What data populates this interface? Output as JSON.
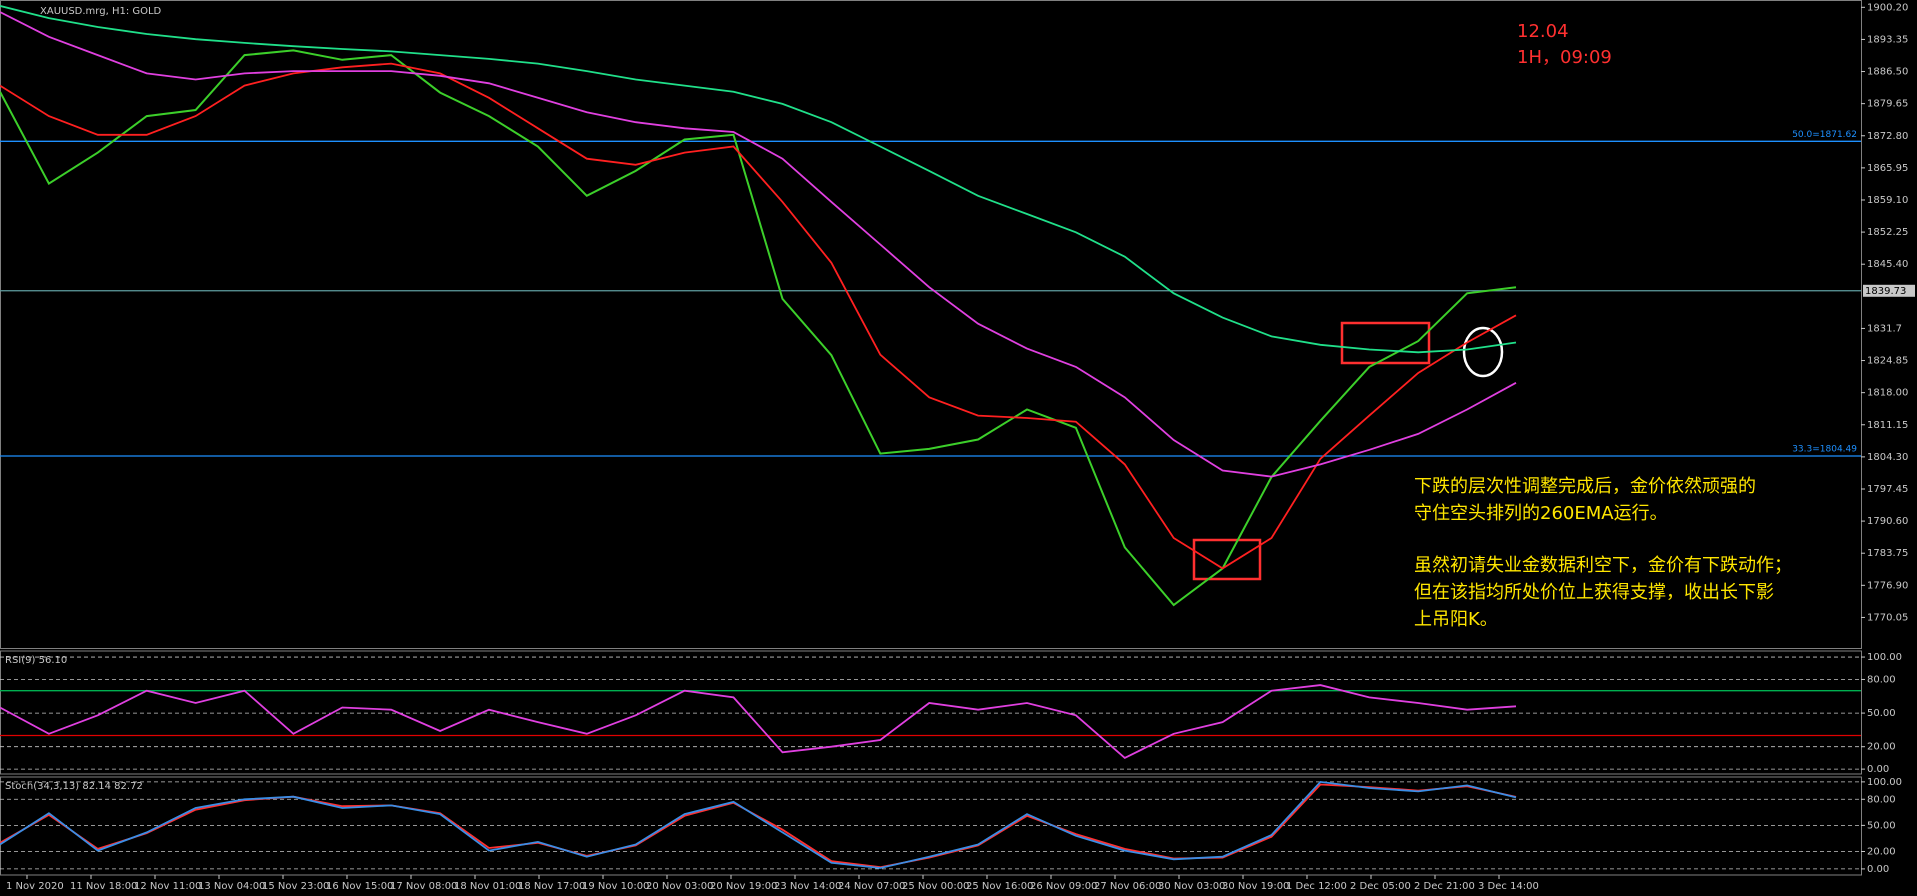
{
  "chart_data": [
    {
      "type": "line",
      "title": "XAUUSD.mrg, H1:  GOLD",
      "annotations": [
        "12.04",
        "1H，09:09"
      ],
      "notes": [
        [
          "下跌的层次性调整完成后，金价依然顽强的",
          "守住空头排列的260EMA运行。"
        ],
        [
          "虽然初请失业金数据利空下，金价有下跌动作；",
          "但在该指均所处价位上获得支撑，收出长下影",
          "上吊阳K。"
        ]
      ],
      "ylim": [
        1763.53,
        1901.76
      ],
      "yticks": [
        {
          "value": 1900.2,
          "label": "1900.20"
        },
        1893.35,
        {
          "value": 1886.5,
          "label": "1886.50"
        },
        1879.65,
        {
          "value": 1872.8,
          "label": "1872.80"
        },
        1865.95,
        {
          "value": 1859.1,
          "label": "1859.10"
        },
        1852.25,
        {
          "value": 1845.4,
          "label": "1845.40"
        },
        1831.7,
        1824.85,
        {
          "value": 1818,
          "label": "1818.00"
        },
        1811.15,
        {
          "value": 1804.3,
          "label": "1804.30"
        },
        1797.45,
        {
          "value": 1790.6,
          "label": "1790.60"
        },
        1783.75,
        {
          "value": 1776.9,
          "label": "1776.90"
        },
        1770.05
      ],
      "grid": false,
      "hlines": [
        {
          "value": 1871.62,
          "label": "50.0=1871.62",
          "color": "#1e90ff"
        },
        {
          "value": 1804.49,
          "label": "33.3=1804.49",
          "color": "#1e90ff"
        },
        {
          "value": 1839.73,
          "label": "1839.73",
          "color": "#5f9ea0"
        }
      ],
      "series": [
        {
          "color": "#3ccf2a",
          "values": [
            1882.2,
            1862.6,
            1869.2,
            1877,
            1878.3,
            1890,
            1891,
            1889,
            1890,
            1882,
            1877,
            1870.5,
            1860,
            1865.3,
            1872,
            1873,
            1838,
            1826,
            1805,
            1806,
            1808,
            1814.4,
            1810.5,
            1785,
            1772.7,
            1780.5,
            1800,
            1812,
            1823.5,
            1829,
            1839.2,
            1840.5
          ]
        },
        {
          "color": "#ff2020",
          "values": [
            1883.5,
            1877,
            1873,
            1873,
            1877,
            1883.5,
            1886.1,
            1887.4,
            1888.2,
            1886.1,
            1880.9,
            1874.4,
            1867.9,
            1866.6,
            1869.2,
            1870.5,
            1858.7,
            1845.7,
            1826.1,
            1817,
            1813.1,
            1812.6,
            1811.8,
            1802.7,
            1787,
            1780.5,
            1787,
            1803.9,
            1813.1,
            1822.2,
            1828.7,
            1834.5
          ]
        },
        {
          "color": "#e040e0",
          "values": [
            1899.2,
            1893.9,
            1890,
            1886.1,
            1884.8,
            1886.1,
            1886.6,
            1886.6,
            1886.6,
            1885.6,
            1884,
            1880.9,
            1877.8,
            1875.7,
            1874.4,
            1873.6,
            1867.9,
            1858.7,
            1849.6,
            1840.5,
            1832.7,
            1827.4,
            1823.5,
            1817,
            1807.9,
            1801.4,
            1800.1,
            1802.7,
            1805.8,
            1809.2,
            1814.4,
            1820.1
          ]
        },
        {
          "color": "#20e08a",
          "values": [
            1900.5,
            1897.9,
            1896,
            1894.5,
            1893.4,
            1892.6,
            1891.9,
            1891.3,
            1890.8,
            1890,
            1889.2,
            1888.2,
            1886.6,
            1884.8,
            1883.5,
            1882.2,
            1879.6,
            1875.7,
            1870.5,
            1865.3,
            1860,
            1856.1,
            1852.2,
            1847,
            1839.2,
            1834,
            1830,
            1828.2,
            1827.2,
            1826.6,
            1827.2,
            1828.7
          ]
        }
      ]
    },
    {
      "type": "line",
      "title": "RSI(9) 56.10",
      "ylim": [
        -4.35,
        105.4
      ],
      "yticks": [
        {
          "value": 100,
          "label": "100.00"
        },
        {
          "value": 80,
          "label": "80.00"
        },
        {
          "value": 50,
          "label": "50.00"
        },
        {
          "value": 20,
          "label": "20.00"
        },
        {
          "value": 0,
          "label": "0.00"
        }
      ],
      "grid": true,
      "hlines": [
        {
          "value": 70,
          "color": "#00b050"
        },
        {
          "value": 30,
          "color": "#e00000"
        }
      ],
      "series": [
        {
          "color": "#e040e0",
          "values": [
            55,
            31.5,
            48,
            70,
            59,
            70,
            31.5,
            55,
            53,
            34,
            53,
            42,
            31.5,
            48,
            70,
            64,
            15,
            20,
            26,
            59,
            53,
            59,
            48,
            10,
            31.5,
            42,
            70,
            75,
            64,
            59,
            53,
            56.1
          ]
        }
      ]
    },
    {
      "type": "line",
      "title": "Stoch(34,3,13) 82.14 82.72",
      "ylim": [
        -7,
        105.6
      ],
      "yticks": [
        {
          "value": 100,
          "label": "100.00"
        },
        {
          "value": 80,
          "label": "80.00"
        },
        {
          "value": 50,
          "label": "50.00"
        },
        {
          "value": 20,
          "label": "20.00"
        },
        {
          "value": 0,
          "label": "0.00"
        }
      ],
      "grid": true,
      "series": [
        {
          "color": "#ff3030",
          "values": [
            30,
            62,
            23,
            41,
            68,
            79,
            83,
            72,
            73,
            64,
            24,
            30,
            15,
            27,
            61,
            76,
            45,
            9,
            2,
            13,
            27,
            61,
            40,
            23,
            12,
            13,
            37,
            97,
            94,
            90,
            95,
            82.72
          ]
        },
        {
          "color": "#3a8ee6",
          "values": [
            28,
            64,
            21,
            42,
            70,
            80,
            83,
            70,
            73,
            63,
            21,
            31,
            14,
            28,
            63,
            77,
            42,
            7,
            1,
            14,
            28,
            63,
            38,
            21,
            11,
            14,
            39,
            100,
            93,
            89,
            96,
            82.14
          ]
        }
      ],
      "time_labels": [
        "1 Nov 2020",
        "11 Nov 18:00",
        "12 Nov 11:00",
        "13 Nov 04:00",
        "15 Nov 23:00",
        "16 Nov 15:00",
        "17 Nov 08:00",
        "18 Nov 01:00",
        "18 Nov 17:00",
        "19 Nov 10:00",
        "20 Nov 03:00",
        "20 Nov 19:00",
        "23 Nov 14:00",
        "24 Nov 07:00",
        "25 Nov 00:00",
        "25 Nov 16:00",
        "26 Nov 09:00",
        "27 Nov 06:00",
        "30 Nov 03:00",
        "30 Nov 19:00",
        "1 Dec 12:00",
        "2 Dec 05:00",
        "2 Dec 21:00",
        "3 Dec 14:00"
      ]
    }
  ]
}
